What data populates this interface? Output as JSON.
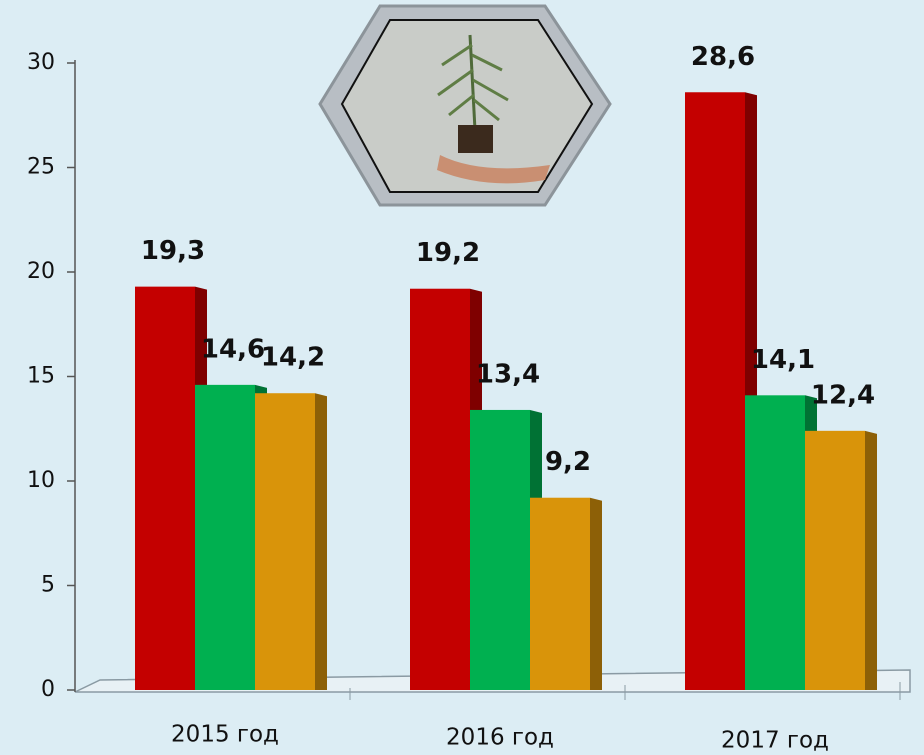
{
  "chart_data": {
    "type": "bar",
    "categories": [
      "2015 год",
      "2016 год",
      "2017 год"
    ],
    "series": [
      {
        "color": "#c40000",
        "values": [
          19.3,
          19.2,
          28.6
        ],
        "value_labels": [
          "19,3",
          "19,2",
          "28,6"
        ]
      },
      {
        "color": "#00b050",
        "values": [
          14.6,
          13.4,
          14.1
        ],
        "value_labels": [
          "14,6",
          "13,4",
          "14,1"
        ]
      },
      {
        "color": "#d9940a",
        "values": [
          14.2,
          9.2,
          12.4
        ],
        "value_labels": [
          "14,2",
          "9,2",
          "12,4"
        ]
      }
    ],
    "ylim": [
      0,
      30
    ],
    "yticks": [
      0,
      5,
      10,
      15,
      20,
      25,
      30
    ],
    "grid": false
  }
}
